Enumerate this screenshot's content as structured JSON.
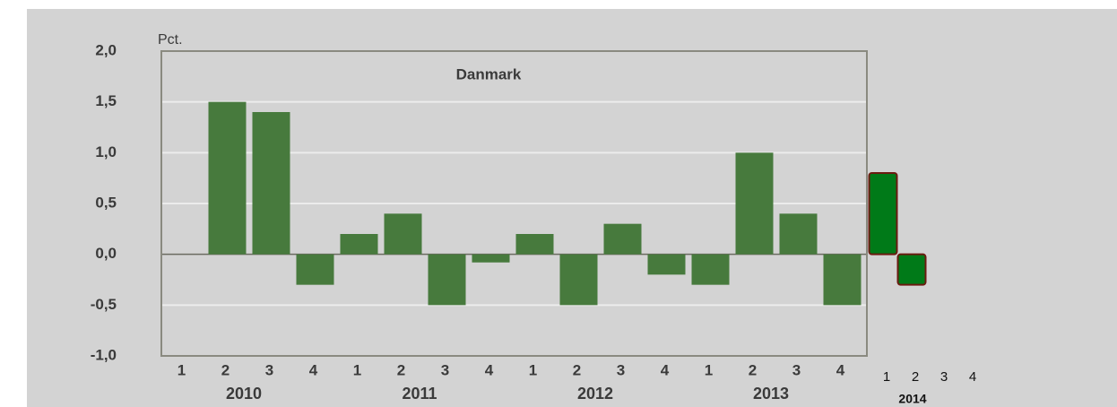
{
  "chart_data": {
    "type": "bar",
    "title": "Danmark",
    "y_label": "Pct.",
    "categories": [
      "1",
      "2",
      "3",
      "4",
      "1",
      "2",
      "3",
      "4",
      "1",
      "2",
      "3",
      "4",
      "1",
      "2",
      "3",
      "4",
      "1",
      "2",
      "3",
      "4"
    ],
    "years": [
      "2010",
      "2011",
      "2012",
      "2013",
      "2014"
    ],
    "values": [
      0,
      1.5,
      1.4,
      -0.3,
      0.2,
      0.4,
      -0.5,
      -0.08,
      0.2,
      -0.5,
      0.3,
      -0.2,
      -0.3,
      1.0,
      0.4,
      -0.5,
      0.8,
      -0.3,
      null,
      null
    ],
    "bar_colors": [
      "#477a3d",
      "#477a3d",
      "#477a3d",
      "#477a3d",
      "#477a3d",
      "#477a3d",
      "#477a3d",
      "#477a3d",
      "#477a3d",
      "#477a3d",
      "#477a3d",
      "#477a3d",
      "#477a3d",
      "#477a3d",
      "#477a3d",
      "#477a3d",
      "#007a18",
      "#007a18",
      "#007a18",
      "#007a18"
    ],
    "ylim": [
      -1,
      2
    ],
    "yticks": [
      {
        "value": -1,
        "label": "-1,0"
      },
      {
        "value": -0.5,
        "label": "-0,5"
      },
      {
        "value": 0,
        "label": "0,0"
      },
      {
        "value": 0.5,
        "label": "0,5"
      },
      {
        "value": 1,
        "label": "1,0"
      },
      {
        "value": 1.5,
        "label": "1,5"
      },
      {
        "value": 2,
        "label": "2,0"
      }
    ],
    "grid": true
  }
}
